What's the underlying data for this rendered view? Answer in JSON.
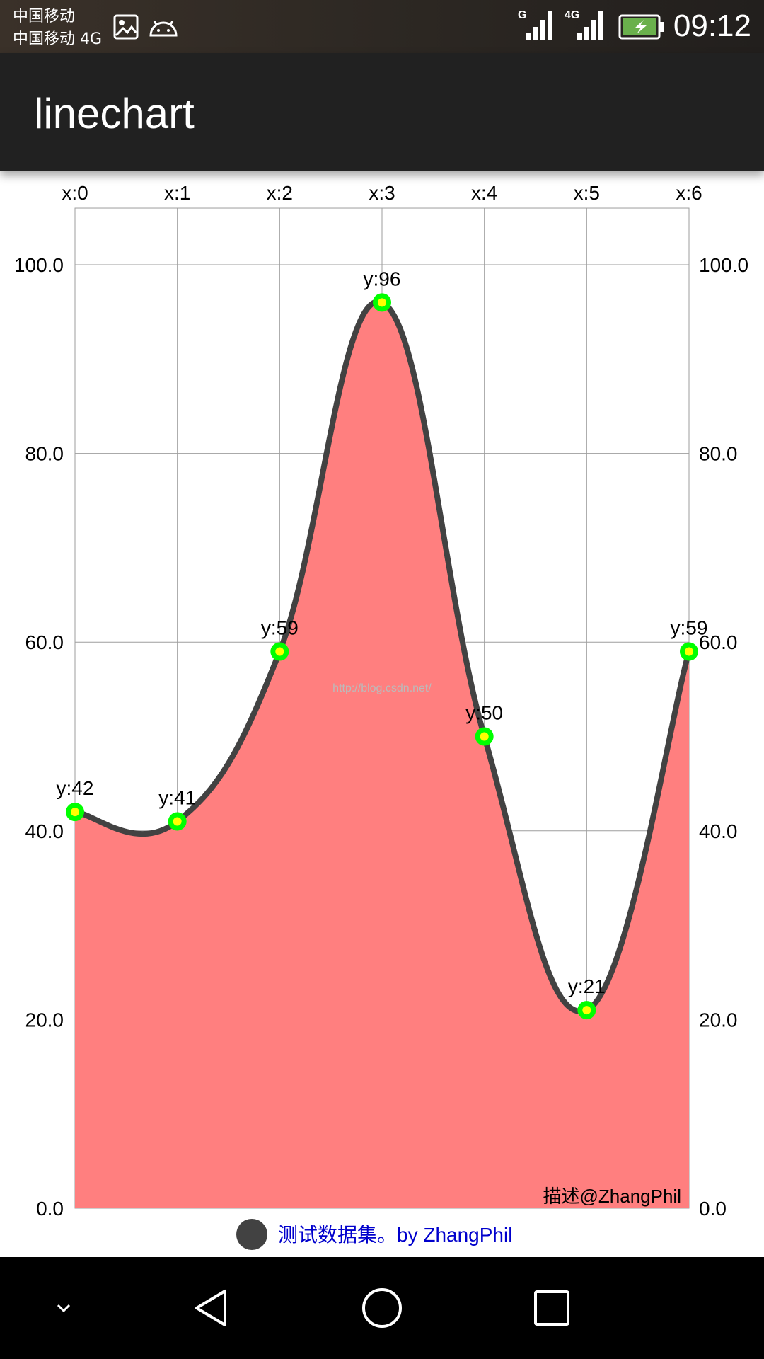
{
  "status_bar": {
    "carrier_1": "中国移动",
    "carrier_2": "中国移动 4G",
    "signal_1_label": "G",
    "signal_2_label": "4G",
    "time": "09:12",
    "icons": [
      "image-icon",
      "android-icon",
      "signal-icon",
      "battery-charging-icon"
    ]
  },
  "app_bar": {
    "title": "linechart"
  },
  "chart_data": {
    "type": "line",
    "smooth": true,
    "filled": true,
    "x": [
      0,
      1,
      2,
      3,
      4,
      5,
      6
    ],
    "x_tick_labels": [
      "x:0",
      "x:1",
      "x:2",
      "x:3",
      "x:4",
      "x:5",
      "x:6"
    ],
    "y_tick_labels": [
      "0.0",
      "20.0",
      "40.0",
      "60.0",
      "80.0",
      "100.0"
    ],
    "ylim": [
      0,
      106
    ],
    "series": [
      {
        "name": "测试数据集。by ZhangPhil",
        "values": [
          42,
          41,
          59,
          96,
          50,
          21,
          59
        ],
        "point_labels": [
          "y:42",
          "y:41",
          "y:59",
          "y:96",
          "y:50",
          "y:21",
          "y:59"
        ],
        "line_color": "#424242",
        "fill_color": "#ff7f7f",
        "marker_color": "#00ff00",
        "marker_hole_color": "#ffff00"
      }
    ],
    "description": "描述@ZhangPhil",
    "watermark": "http://blog.csdn.net/",
    "grid": true,
    "legend_placement": "bottom",
    "legend_color": "#424242",
    "legend_text_color": "#0000cc"
  },
  "nav_bar": {
    "icons": [
      "chevron-down-icon",
      "back-icon",
      "home-icon",
      "recents-icon"
    ]
  }
}
